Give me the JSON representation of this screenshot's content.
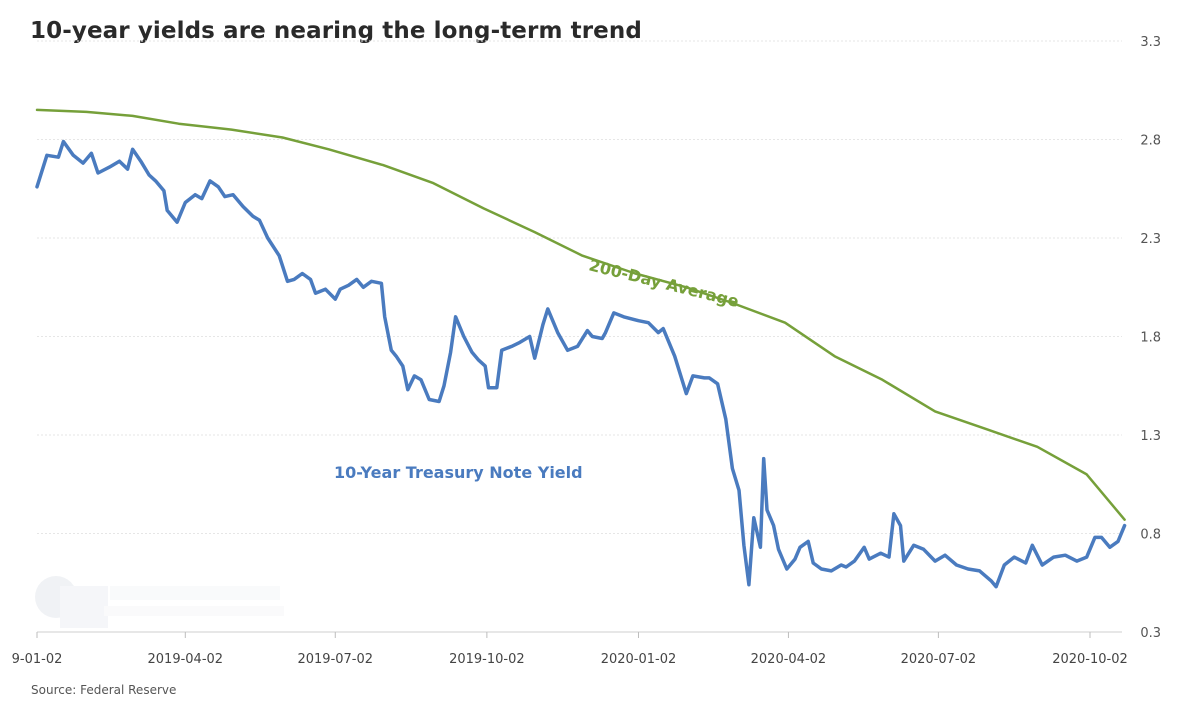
{
  "chart_data": {
    "type": "line",
    "title": "10-year yields are nearing the long-term trend",
    "source": "Source: Federal Reserve",
    "ylim": [
      0.3,
      3.3
    ],
    "y_ticks": [
      "3.3",
      "2.8",
      "2.3",
      "1.8",
      "1.3",
      "0.8",
      "0.3"
    ],
    "x_ticks": [
      "9-01-02",
      "2019-04-02",
      "2019-07-02",
      "2019-10-02",
      "2020-01-02",
      "2020-04-02",
      "2020-07-02",
      "2020-10-02"
    ],
    "grid": true,
    "y_axis_side": "right",
    "series": [
      {
        "name": "10-Year Treasury Note Yield",
        "color": "#4a7bbf",
        "points": [
          [
            "2019-01-02",
            2.56
          ],
          [
            "2019-01-08",
            2.72
          ],
          [
            "2019-01-15",
            2.71
          ],
          [
            "2019-01-18",
            2.79
          ],
          [
            "2019-01-24",
            2.72
          ],
          [
            "2019-01-30",
            2.68
          ],
          [
            "2019-02-04",
            2.73
          ],
          [
            "2019-02-08",
            2.63
          ],
          [
            "2019-02-15",
            2.66
          ],
          [
            "2019-02-21",
            2.69
          ],
          [
            "2019-02-26",
            2.65
          ],
          [
            "2019-03-01",
            2.75
          ],
          [
            "2019-03-06",
            2.69
          ],
          [
            "2019-03-11",
            2.62
          ],
          [
            "2019-03-15",
            2.59
          ],
          [
            "2019-03-20",
            2.54
          ],
          [
            "2019-03-22",
            2.44
          ],
          [
            "2019-03-28",
            2.38
          ],
          [
            "2019-04-02",
            2.48
          ],
          [
            "2019-04-08",
            2.52
          ],
          [
            "2019-04-12",
            2.5
          ],
          [
            "2019-04-17",
            2.59
          ],
          [
            "2019-04-22",
            2.56
          ],
          [
            "2019-04-26",
            2.51
          ],
          [
            "2019-05-01",
            2.52
          ],
          [
            "2019-05-07",
            2.46
          ],
          [
            "2019-05-13",
            2.41
          ],
          [
            "2019-05-17",
            2.39
          ],
          [
            "2019-05-22",
            2.3
          ],
          [
            "2019-05-29",
            2.21
          ],
          [
            "2019-06-03",
            2.08
          ],
          [
            "2019-06-07",
            2.09
          ],
          [
            "2019-06-12",
            2.12
          ],
          [
            "2019-06-17",
            2.09
          ],
          [
            "2019-06-20",
            2.02
          ],
          [
            "2019-06-26",
            2.04
          ],
          [
            "2019-07-02",
            1.99
          ],
          [
            "2019-07-05",
            2.04
          ],
          [
            "2019-07-10",
            2.06
          ],
          [
            "2019-07-15",
            2.09
          ],
          [
            "2019-07-19",
            2.05
          ],
          [
            "2019-07-24",
            2.08
          ],
          [
            "2019-07-30",
            2.07
          ],
          [
            "2019-08-01",
            1.9
          ],
          [
            "2019-08-05",
            1.73
          ],
          [
            "2019-08-08",
            1.7
          ],
          [
            "2019-08-12",
            1.65
          ],
          [
            "2019-08-15",
            1.53
          ],
          [
            "2019-08-19",
            1.6
          ],
          [
            "2019-08-23",
            1.58
          ],
          [
            "2019-08-28",
            1.48
          ],
          [
            "2019-09-03",
            1.47
          ],
          [
            "2019-09-06",
            1.55
          ],
          [
            "2019-09-10",
            1.72
          ],
          [
            "2019-09-13",
            1.9
          ],
          [
            "2019-09-18",
            1.8
          ],
          [
            "2019-09-23",
            1.72
          ],
          [
            "2019-09-27",
            1.68
          ],
          [
            "2019-10-01",
            1.65
          ],
          [
            "2019-10-03",
            1.54
          ],
          [
            "2019-10-08",
            1.54
          ],
          [
            "2019-10-11",
            1.73
          ],
          [
            "2019-10-17",
            1.75
          ],
          [
            "2019-10-22",
            1.77
          ],
          [
            "2019-10-28",
            1.8
          ],
          [
            "2019-10-31",
            1.69
          ],
          [
            "2019-11-05",
            1.86
          ],
          [
            "2019-11-08",
            1.94
          ],
          [
            "2019-11-14",
            1.82
          ],
          [
            "2019-11-20",
            1.73
          ],
          [
            "2019-11-26",
            1.75
          ],
          [
            "2019-12-02",
            1.83
          ],
          [
            "2019-12-05",
            1.8
          ],
          [
            "2019-12-11",
            1.79
          ],
          [
            "2019-12-13",
            1.82
          ],
          [
            "2019-12-18",
            1.92
          ],
          [
            "2019-12-24",
            1.9
          ],
          [
            "2020-01-02",
            1.88
          ],
          [
            "2020-01-08",
            1.87
          ],
          [
            "2020-01-14",
            1.82
          ],
          [
            "2020-01-17",
            1.84
          ],
          [
            "2020-01-24",
            1.7
          ],
          [
            "2020-01-31",
            1.51
          ],
          [
            "2020-02-04",
            1.6
          ],
          [
            "2020-02-11",
            1.59
          ],
          [
            "2020-02-14",
            1.59
          ],
          [
            "2020-02-19",
            1.56
          ],
          [
            "2020-02-24",
            1.38
          ],
          [
            "2020-02-28",
            1.13
          ],
          [
            "2020-03-03",
            1.02
          ],
          [
            "2020-03-06",
            0.74
          ],
          [
            "2020-03-09",
            0.54
          ],
          [
            "2020-03-12",
            0.88
          ],
          [
            "2020-03-16",
            0.73
          ],
          [
            "2020-03-18",
            1.18
          ],
          [
            "2020-03-20",
            0.92
          ],
          [
            "2020-03-24",
            0.84
          ],
          [
            "2020-03-27",
            0.72
          ],
          [
            "2020-04-01",
            0.62
          ],
          [
            "2020-04-06",
            0.67
          ],
          [
            "2020-04-09",
            0.73
          ],
          [
            "2020-04-14",
            0.76
          ],
          [
            "2020-04-17",
            0.65
          ],
          [
            "2020-04-22",
            0.62
          ],
          [
            "2020-04-28",
            0.61
          ],
          [
            "2020-05-04",
            0.64
          ],
          [
            "2020-05-07",
            0.63
          ],
          [
            "2020-05-12",
            0.66
          ],
          [
            "2020-05-18",
            0.73
          ],
          [
            "2020-05-21",
            0.67
          ],
          [
            "2020-05-28",
            0.7
          ],
          [
            "2020-06-02",
            0.68
          ],
          [
            "2020-06-05",
            0.9
          ],
          [
            "2020-06-09",
            0.84
          ],
          [
            "2020-06-11",
            0.66
          ],
          [
            "2020-06-17",
            0.74
          ],
          [
            "2020-06-23",
            0.72
          ],
          [
            "2020-06-30",
            0.66
          ],
          [
            "2020-07-06",
            0.69
          ],
          [
            "2020-07-13",
            0.64
          ],
          [
            "2020-07-20",
            0.62
          ],
          [
            "2020-07-27",
            0.61
          ],
          [
            "2020-08-03",
            0.56
          ],
          [
            "2020-08-06",
            0.53
          ],
          [
            "2020-08-11",
            0.64
          ],
          [
            "2020-08-17",
            0.68
          ],
          [
            "2020-08-24",
            0.65
          ],
          [
            "2020-08-28",
            0.74
          ],
          [
            "2020-09-03",
            0.64
          ],
          [
            "2020-09-10",
            0.68
          ],
          [
            "2020-09-17",
            0.69
          ],
          [
            "2020-09-24",
            0.66
          ],
          [
            "2020-09-30",
            0.68
          ],
          [
            "2020-10-05",
            0.78
          ],
          [
            "2020-10-09",
            0.78
          ],
          [
            "2020-10-14",
            0.73
          ],
          [
            "2020-10-19",
            0.76
          ],
          [
            "2020-10-23",
            0.84
          ]
        ]
      },
      {
        "name": "200-Day Average",
        "color": "#76a03a",
        "points": [
          [
            "2019-01-02",
            2.95
          ],
          [
            "2019-02-01",
            2.94
          ],
          [
            "2019-03-01",
            2.92
          ],
          [
            "2019-03-29",
            2.88
          ],
          [
            "2019-04-30",
            2.85
          ],
          [
            "2019-05-31",
            2.81
          ],
          [
            "2019-06-28",
            2.75
          ],
          [
            "2019-07-31",
            2.67
          ],
          [
            "2019-08-30",
            2.58
          ],
          [
            "2019-09-30",
            2.45
          ],
          [
            "2019-10-31",
            2.33
          ],
          [
            "2019-11-29",
            2.21
          ],
          [
            "2019-12-31",
            2.12
          ],
          [
            "2020-01-31",
            2.05
          ],
          [
            "2020-02-28",
            1.97
          ],
          [
            "2020-03-31",
            1.87
          ],
          [
            "2020-04-30",
            1.7
          ],
          [
            "2020-05-29",
            1.58
          ],
          [
            "2020-06-30",
            1.42
          ],
          [
            "2020-07-31",
            1.33
          ],
          [
            "2020-08-31",
            1.24
          ],
          [
            "2020-09-30",
            1.1
          ],
          [
            "2020-10-23",
            0.87
          ]
        ]
      }
    ]
  }
}
